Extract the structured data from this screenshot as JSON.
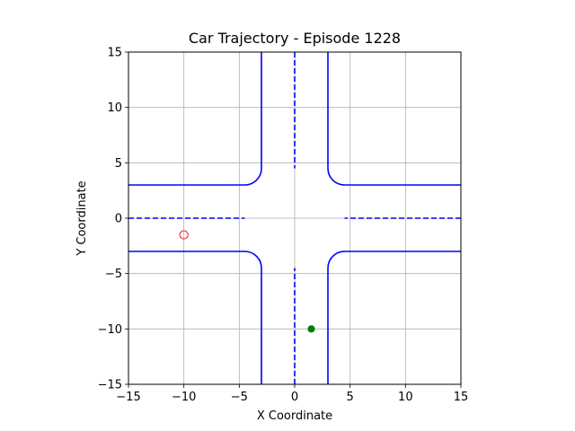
{
  "chart_data": {
    "type": "scatter",
    "title": "Car Trajectory - Episode 1228",
    "xlabel": "X Coordinate",
    "ylabel": "Y Coordinate",
    "xlim": [
      -15,
      15
    ],
    "ylim": [
      -15,
      15
    ],
    "grid": true,
    "x_ticks": [
      -15,
      -10,
      -5,
      0,
      5,
      10,
      15
    ],
    "y_ticks": [
      -15,
      -10,
      -5,
      0,
      5,
      10,
      15
    ],
    "x_tick_labels": [
      "−15",
      "−10",
      "−5",
      "0",
      "5",
      "10",
      "15"
    ],
    "y_tick_labels": [
      "−15",
      "−10",
      "−5",
      "0",
      "5",
      "10",
      "15"
    ],
    "road": {
      "color": "#0000ff",
      "edge_offset": 3,
      "corner_radius": 1.5,
      "center_dash_inner": 4.5,
      "edges": [
        [
          [
            -3,
            15
          ],
          [
            -3,
            4.5
          ]
        ],
        [
          [
            3,
            15
          ],
          [
            3,
            4.5
          ]
        ],
        [
          [
            -3,
            -15
          ],
          [
            -3,
            -4.5
          ]
        ],
        [
          [
            3,
            -15
          ],
          [
            3,
            -4.5
          ]
        ],
        [
          [
            -15,
            3
          ],
          [
            -4.5,
            3
          ]
        ],
        [
          [
            15,
            3
          ],
          [
            4.5,
            3
          ]
        ],
        [
          [
            -15,
            -3
          ],
          [
            -4.5,
            -3
          ]
        ],
        [
          [
            15,
            -3
          ],
          [
            4.5,
            -3
          ]
        ]
      ],
      "corners": [
        {
          "start": [
            -3,
            4.5
          ],
          "end": [
            -4.5,
            3
          ]
        },
        {
          "start": [
            3,
            4.5
          ],
          "end": [
            4.5,
            3
          ]
        },
        {
          "start": [
            -3,
            -4.5
          ],
          "end": [
            -4.5,
            -3
          ]
        },
        {
          "start": [
            3,
            -4.5
          ],
          "end": [
            4.5,
            -3
          ]
        }
      ],
      "center_lines": [
        [
          [
            0,
            15
          ],
          [
            0,
            4.5
          ]
        ],
        [
          [
            0,
            -15
          ],
          [
            0,
            -4.5
          ]
        ],
        [
          [
            -15,
            0
          ],
          [
            -4.5,
            0
          ]
        ],
        [
          [
            15,
            0
          ],
          [
            4.5,
            0
          ]
        ]
      ]
    },
    "points": [
      {
        "x": -10.0,
        "y": -1.5,
        "marker": "hollow-circle",
        "color": "#e41a1c"
      },
      {
        "x": 1.5,
        "y": -10.0,
        "marker": "filled-circle",
        "color": "#008000"
      }
    ]
  }
}
